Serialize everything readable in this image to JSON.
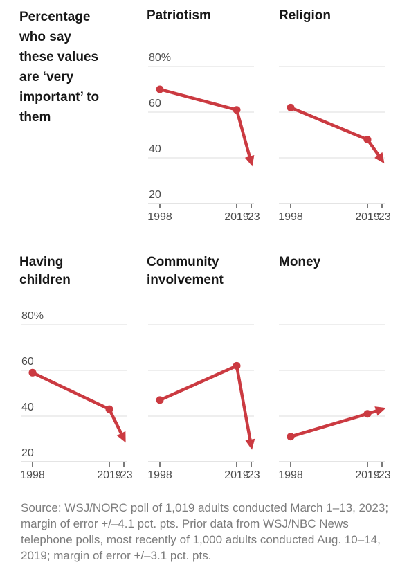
{
  "page": {
    "intro": "Percentage who say these values are ‘very important’ to them",
    "source": "Source: WSJ/NORC poll of 1,019 adults conducted March 1–13, 2023; margin of error +/–4.1 pct. pts. Prior data from WSJ/NBC News telephone polls, most recently of 1,000 adults conducted Aug. 10–14, 2019; margin of error +/–3.1 pct. pts."
  },
  "axis": {
    "x": [
      1998,
      2019,
      2023
    ],
    "x_tick_labels": [
      "1998",
      "2019",
      "’23"
    ],
    "y_ticks": [
      80,
      60,
      40,
      20
    ],
    "y_tick_labels": [
      "80%",
      "60",
      "40",
      "20"
    ],
    "ylim": [
      20,
      80
    ],
    "grid": "horizontal-only",
    "legend": "none"
  },
  "chart_data": [
    {
      "type": "line",
      "title": "Patriotism",
      "x": [
        1998,
        2019,
        2023
      ],
      "values": [
        70,
        61,
        38
      ],
      "arrow_end": true,
      "y_labels_shown": true,
      "ylim": [
        20,
        80
      ]
    },
    {
      "type": "line",
      "title": "Religion",
      "x": [
        1998,
        2019,
        2023
      ],
      "values": [
        62,
        48,
        39
      ],
      "arrow_end": true,
      "y_labels_shown": false,
      "ylim": [
        20,
        80
      ]
    },
    {
      "type": "line",
      "title": "Having children",
      "x": [
        1998,
        2019,
        2023
      ],
      "values": [
        59,
        43,
        30
      ],
      "arrow_end": true,
      "y_labels_shown": true,
      "ylim": [
        20,
        80
      ]
    },
    {
      "type": "line",
      "title": "Community involvement",
      "x": [
        1998,
        2019,
        2023
      ],
      "values": [
        47,
        62,
        27
      ],
      "arrow_end": true,
      "y_labels_shown": false,
      "ylim": [
        20,
        80
      ]
    },
    {
      "type": "line",
      "title": "Money",
      "x": [
        1998,
        2019,
        2023
      ],
      "values": [
        31,
        41,
        43
      ],
      "arrow_end": true,
      "y_labels_shown": false,
      "ylim": [
        20,
        80
      ]
    }
  ],
  "colors": {
    "line": "#cb3a41",
    "gridline": "#dcdcdc",
    "axis_line": "#c9c9c9",
    "tick": "#4d4d4d",
    "tick_label": "#4d4d4d",
    "heading_text": "#171717",
    "source_text": "#7c7c7c",
    "background": "#ffffff"
  }
}
